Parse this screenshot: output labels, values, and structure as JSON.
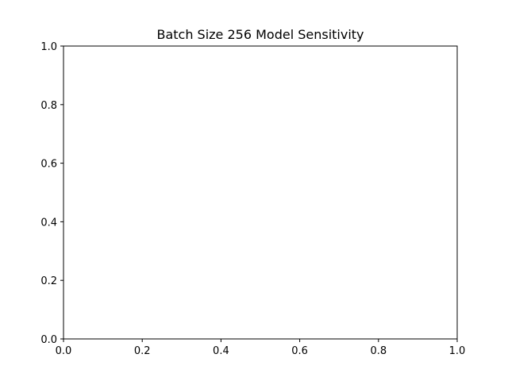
{
  "chart_data": {
    "type": "line",
    "title": "Batch Size 256 Model Sensitivity",
    "xlabel": "",
    "ylabel": "",
    "xlim": [
      0.0,
      1.0
    ],
    "ylim": [
      0.0,
      1.0
    ],
    "x_ticks": [
      0.0,
      0.2,
      0.4,
      0.6,
      0.8,
      1.0
    ],
    "y_ticks": [
      0.0,
      0.2,
      0.4,
      0.6,
      0.8,
      1.0
    ],
    "x_tick_labels": [
      "0.0",
      "0.2",
      "0.4",
      "0.6",
      "0.8",
      "1.0"
    ],
    "y_tick_labels": [
      "0.0",
      "0.2",
      "0.4",
      "0.6",
      "0.8",
      "1.0"
    ],
    "series": [],
    "grid": false,
    "legend": "none"
  }
}
